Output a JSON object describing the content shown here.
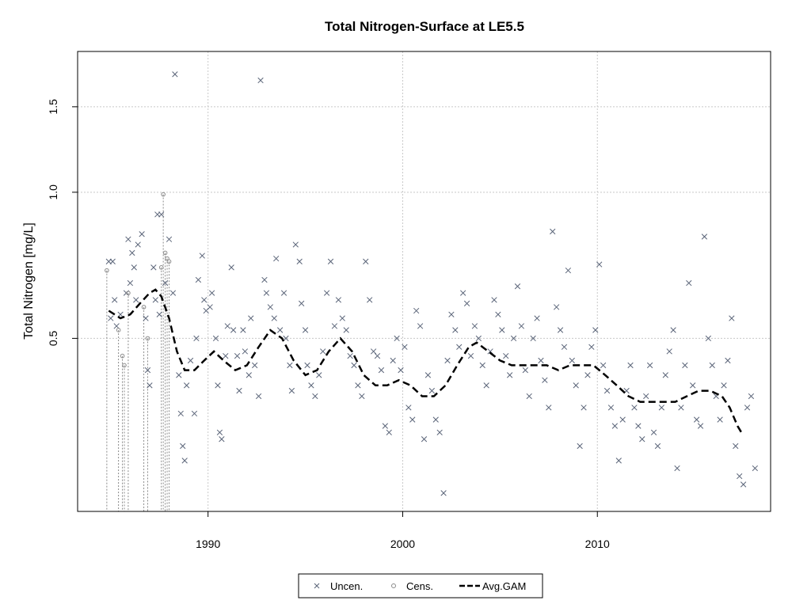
{
  "chart_data": {
    "type": "scatter",
    "title": "Total Nitrogen-Surface at LE5.5",
    "xlabel": "",
    "ylabel": "Total Nitrogen [mg/L]",
    "xlim": [
      1983.3,
      2018.9
    ],
    "ylim": [
      0.22,
      1.95
    ],
    "y_scale": "log",
    "x_ticks": [
      {
        "value": 1990,
        "label": "1990"
      },
      {
        "value": 2000,
        "label": "2000"
      },
      {
        "value": 2010,
        "label": "2010"
      }
    ],
    "y_ticks": [
      {
        "value": 0.5,
        "label": "0.5"
      },
      {
        "value": 1.0,
        "label": "1.0"
      },
      {
        "value": 1.5,
        "label": "1.5"
      }
    ],
    "grid": true,
    "legend": {
      "position": "bottom",
      "entries": [
        {
          "label": "Uncen.",
          "marker": "x"
        },
        {
          "label": "Cens.",
          "marker": "circle"
        },
        {
          "label": "Avg.GAM",
          "marker": "dashed-line"
        }
      ]
    },
    "colors": {
      "points": "#5a6478",
      "censored": "#8a8a8a",
      "gam": "#000000",
      "grid": "#c8c8c8"
    },
    "uncensored": [
      [
        1984.9,
        0.72
      ],
      [
        1985.1,
        0.72
      ],
      [
        1985.0,
        0.55
      ],
      [
        1985.3,
        0.53
      ],
      [
        1985.5,
        0.56
      ],
      [
        1985.2,
        0.6
      ],
      [
        1985.8,
        0.62
      ],
      [
        1985.9,
        0.8
      ],
      [
        1986.1,
        0.75
      ],
      [
        1986.2,
        0.7
      ],
      [
        1986.0,
        0.65
      ],
      [
        1986.3,
        0.6
      ],
      [
        1986.4,
        0.78
      ],
      [
        1986.6,
        0.82
      ],
      [
        1986.8,
        0.55
      ],
      [
        1986.9,
        0.43
      ],
      [
        1987.0,
        0.4
      ],
      [
        1987.2,
        0.7
      ],
      [
        1987.4,
        0.9
      ],
      [
        1987.6,
        0.9
      ],
      [
        1987.8,
        0.65
      ],
      [
        1987.3,
        0.6
      ],
      [
        1987.5,
        0.56
      ],
      [
        1988.0,
        0.8
      ],
      [
        1988.2,
        0.62
      ],
      [
        1988.3,
        1.75
      ],
      [
        1988.5,
        0.42
      ],
      [
        1988.6,
        0.35
      ],
      [
        1988.7,
        0.3
      ],
      [
        1988.8,
        0.28
      ],
      [
        1988.9,
        0.4
      ],
      [
        1989.1,
        0.45
      ],
      [
        1989.3,
        0.35
      ],
      [
        1989.4,
        0.5
      ],
      [
        1989.5,
        0.66
      ],
      [
        1989.7,
        0.74
      ],
      [
        1989.8,
        0.6
      ],
      [
        1989.9,
        0.57
      ],
      [
        1990.1,
        0.58
      ],
      [
        1990.2,
        0.62
      ],
      [
        1990.4,
        0.5
      ],
      [
        1990.5,
        0.4
      ],
      [
        1990.6,
        0.32
      ],
      [
        1990.7,
        0.31
      ],
      [
        1990.9,
        0.46
      ],
      [
        1991.0,
        0.53
      ],
      [
        1991.2,
        0.7
      ],
      [
        1991.3,
        0.52
      ],
      [
        1991.5,
        0.46
      ],
      [
        1991.6,
        0.39
      ],
      [
        1991.8,
        0.52
      ],
      [
        1991.9,
        0.47
      ],
      [
        1992.1,
        0.42
      ],
      [
        1992.2,
        0.55
      ],
      [
        1992.4,
        0.44
      ],
      [
        1992.6,
        0.38
      ],
      [
        1992.7,
        1.7
      ],
      [
        1992.9,
        0.66
      ],
      [
        1993.0,
        0.62
      ],
      [
        1993.2,
        0.58
      ],
      [
        1993.4,
        0.55
      ],
      [
        1993.5,
        0.73
      ],
      [
        1993.7,
        0.52
      ],
      [
        1993.9,
        0.62
      ],
      [
        1994.0,
        0.5
      ],
      [
        1994.2,
        0.44
      ],
      [
        1994.3,
        0.39
      ],
      [
        1994.5,
        0.78
      ],
      [
        1994.7,
        0.72
      ],
      [
        1994.8,
        0.59
      ],
      [
        1995.0,
        0.52
      ],
      [
        1995.1,
        0.44
      ],
      [
        1995.3,
        0.4
      ],
      [
        1995.5,
        0.38
      ],
      [
        1995.7,
        0.42
      ],
      [
        1995.9,
        0.47
      ],
      [
        1996.1,
        0.62
      ],
      [
        1996.3,
        0.72
      ],
      [
        1996.5,
        0.53
      ],
      [
        1996.7,
        0.6
      ],
      [
        1996.9,
        0.55
      ],
      [
        1997.1,
        0.52
      ],
      [
        1997.3,
        0.46
      ],
      [
        1997.5,
        0.44
      ],
      [
        1997.7,
        0.4
      ],
      [
        1997.9,
        0.38
      ],
      [
        1998.1,
        0.72
      ],
      [
        1998.3,
        0.6
      ],
      [
        1998.5,
        0.47
      ],
      [
        1998.7,
        0.46
      ],
      [
        1998.9,
        0.43
      ],
      [
        1999.1,
        0.33
      ],
      [
        1999.3,
        0.32
      ],
      [
        1999.5,
        0.45
      ],
      [
        1999.7,
        0.5
      ],
      [
        1999.9,
        0.43
      ],
      [
        2000.1,
        0.48
      ],
      [
        2000.3,
        0.36
      ],
      [
        2000.5,
        0.34
      ],
      [
        2000.7,
        0.57
      ],
      [
        2000.9,
        0.53
      ],
      [
        2001.1,
        0.31
      ],
      [
        2001.3,
        0.42
      ],
      [
        2001.5,
        0.39
      ],
      [
        2001.7,
        0.34
      ],
      [
        2001.9,
        0.32
      ],
      [
        2002.1,
        0.24
      ],
      [
        2002.3,
        0.45
      ],
      [
        2002.5,
        0.56
      ],
      [
        2002.7,
        0.52
      ],
      [
        2002.9,
        0.48
      ],
      [
        2003.1,
        0.62
      ],
      [
        2003.3,
        0.59
      ],
      [
        2003.5,
        0.46
      ],
      [
        2003.7,
        0.53
      ],
      [
        2003.9,
        0.5
      ],
      [
        2004.1,
        0.44
      ],
      [
        2004.3,
        0.4
      ],
      [
        2004.5,
        0.47
      ],
      [
        2004.7,
        0.6
      ],
      [
        2004.9,
        0.56
      ],
      [
        2005.1,
        0.52
      ],
      [
        2005.3,
        0.46
      ],
      [
        2005.5,
        0.42
      ],
      [
        2005.7,
        0.5
      ],
      [
        2005.9,
        0.64
      ],
      [
        2006.1,
        0.53
      ],
      [
        2006.3,
        0.43
      ],
      [
        2006.5,
        0.38
      ],
      [
        2006.7,
        0.5
      ],
      [
        2006.9,
        0.55
      ],
      [
        2007.1,
        0.45
      ],
      [
        2007.3,
        0.41
      ],
      [
        2007.5,
        0.36
      ],
      [
        2007.7,
        0.83
      ],
      [
        2007.9,
        0.58
      ],
      [
        2008.1,
        0.52
      ],
      [
        2008.3,
        0.48
      ],
      [
        2008.5,
        0.69
      ],
      [
        2008.7,
        0.45
      ],
      [
        2008.9,
        0.4
      ],
      [
        2009.1,
        0.3
      ],
      [
        2009.3,
        0.36
      ],
      [
        2009.5,
        0.42
      ],
      [
        2009.7,
        0.48
      ],
      [
        2009.9,
        0.52
      ],
      [
        2010.1,
        0.71
      ],
      [
        2010.3,
        0.44
      ],
      [
        2010.5,
        0.39
      ],
      [
        2010.7,
        0.36
      ],
      [
        2010.9,
        0.33
      ],
      [
        2011.1,
        0.28
      ],
      [
        2011.3,
        0.34
      ],
      [
        2011.5,
        0.39
      ],
      [
        2011.7,
        0.44
      ],
      [
        2011.9,
        0.36
      ],
      [
        2012.1,
        0.33
      ],
      [
        2012.3,
        0.31
      ],
      [
        2012.5,
        0.38
      ],
      [
        2012.7,
        0.44
      ],
      [
        2012.9,
        0.32
      ],
      [
        2013.1,
        0.3
      ],
      [
        2013.3,
        0.36
      ],
      [
        2013.5,
        0.42
      ],
      [
        2013.7,
        0.47
      ],
      [
        2013.9,
        0.52
      ],
      [
        2014.1,
        0.27
      ],
      [
        2014.3,
        0.36
      ],
      [
        2014.5,
        0.44
      ],
      [
        2014.7,
        0.65
      ],
      [
        2014.9,
        0.4
      ],
      [
        2015.1,
        0.34
      ],
      [
        2015.3,
        0.33
      ],
      [
        2015.5,
        0.81
      ],
      [
        2015.7,
        0.5
      ],
      [
        2015.9,
        0.44
      ],
      [
        2016.1,
        0.38
      ],
      [
        2016.3,
        0.34
      ],
      [
        2016.5,
        0.4
      ],
      [
        2016.7,
        0.45
      ],
      [
        2016.9,
        0.55
      ],
      [
        2017.1,
        0.3
      ],
      [
        2017.3,
        0.26
      ],
      [
        2017.5,
        0.25
      ],
      [
        2017.7,
        0.36
      ],
      [
        2017.9,
        0.38
      ],
      [
        2018.1,
        0.27
      ]
    ],
    "censored": [
      [
        1984.8,
        0.69
      ],
      [
        1985.4,
        0.52
      ],
      [
        1985.6,
        0.46
      ],
      [
        1985.7,
        0.44
      ],
      [
        1985.9,
        0.62
      ],
      [
        1986.7,
        0.58
      ],
      [
        1986.9,
        0.5
      ],
      [
        1987.7,
        0.99
      ],
      [
        1987.8,
        0.75
      ],
      [
        1987.9,
        0.73
      ],
      [
        1988.0,
        0.72
      ],
      [
        1987.6,
        0.7
      ]
    ],
    "avg_gam": [
      [
        1984.9,
        0.57
      ],
      [
        1985.5,
        0.55
      ],
      [
        1986.0,
        0.56
      ],
      [
        1986.5,
        0.59
      ],
      [
        1987.0,
        0.62
      ],
      [
        1987.3,
        0.63
      ],
      [
        1987.6,
        0.61
      ],
      [
        1988.0,
        0.55
      ],
      [
        1988.4,
        0.47
      ],
      [
        1988.8,
        0.43
      ],
      [
        1989.3,
        0.43
      ],
      [
        1989.8,
        0.45
      ],
      [
        1990.3,
        0.47
      ],
      [
        1990.8,
        0.45
      ],
      [
        1991.4,
        0.43
      ],
      [
        1992.0,
        0.44
      ],
      [
        1992.6,
        0.48
      ],
      [
        1993.2,
        0.52
      ],
      [
        1993.8,
        0.5
      ],
      [
        1994.4,
        0.45
      ],
      [
        1995.0,
        0.42
      ],
      [
        1995.6,
        0.43
      ],
      [
        1996.2,
        0.47
      ],
      [
        1996.8,
        0.5
      ],
      [
        1997.4,
        0.47
      ],
      [
        1998.0,
        0.42
      ],
      [
        1998.6,
        0.4
      ],
      [
        1999.2,
        0.4
      ],
      [
        1999.8,
        0.41
      ],
      [
        2000.4,
        0.4
      ],
      [
        2001.0,
        0.38
      ],
      [
        2001.6,
        0.38
      ],
      [
        2002.2,
        0.4
      ],
      [
        2002.8,
        0.44
      ],
      [
        2003.4,
        0.48
      ],
      [
        2003.8,
        0.49
      ],
      [
        2004.4,
        0.47
      ],
      [
        2005.0,
        0.45
      ],
      [
        2005.6,
        0.44
      ],
      [
        2006.2,
        0.44
      ],
      [
        2006.8,
        0.44
      ],
      [
        2007.4,
        0.44
      ],
      [
        2008.0,
        0.43
      ],
      [
        2008.6,
        0.44
      ],
      [
        2009.2,
        0.44
      ],
      [
        2009.8,
        0.44
      ],
      [
        2010.4,
        0.42
      ],
      [
        2011.0,
        0.4
      ],
      [
        2011.6,
        0.38
      ],
      [
        2012.2,
        0.37
      ],
      [
        2012.8,
        0.37
      ],
      [
        2013.4,
        0.37
      ],
      [
        2014.0,
        0.37
      ],
      [
        2014.6,
        0.38
      ],
      [
        2015.2,
        0.39
      ],
      [
        2015.8,
        0.39
      ],
      [
        2016.4,
        0.38
      ],
      [
        2016.8,
        0.36
      ],
      [
        2017.2,
        0.33
      ],
      [
        2017.4,
        0.32
      ]
    ]
  }
}
